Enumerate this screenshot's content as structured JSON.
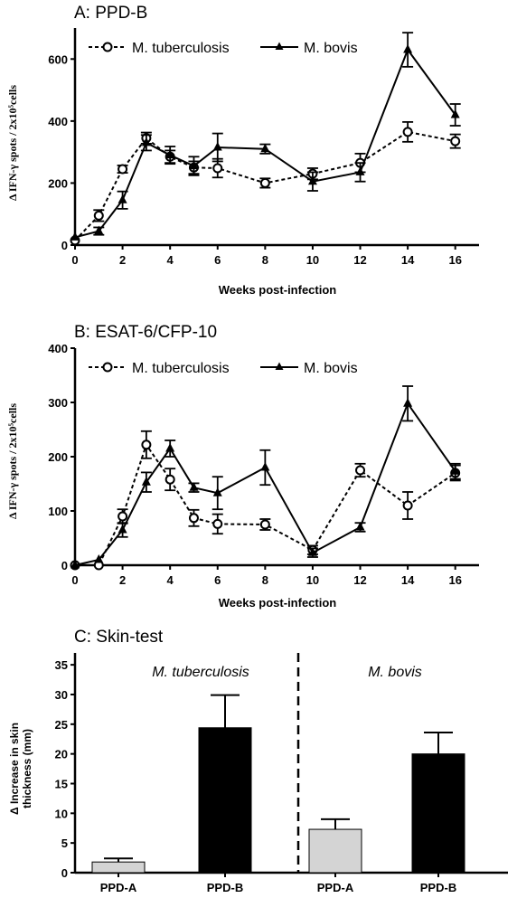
{
  "chart_data": [
    {
      "type": "line",
      "title": "A: PPD-B",
      "xlabel": "Weeks post-infection",
      "ylabel": "Δ IFN-γ spots / 2x10⁵cells",
      "xlim": [
        0,
        17
      ],
      "ylim": [
        0,
        700
      ],
      "xticks": [
        "0",
        "2",
        "4",
        "6",
        "8",
        "10",
        "12",
        "14",
        "16"
      ],
      "yticks": [
        "0",
        "200",
        "400",
        "600"
      ],
      "legend_position": "top-left",
      "series": [
        {
          "name": "M. tuberculosis",
          "style": "dashed-open-circle",
          "x": [
            0,
            1,
            2,
            3,
            4,
            5,
            6,
            8,
            10,
            12,
            14,
            16
          ],
          "y": [
            15,
            95,
            245,
            345,
            285,
            250,
            248,
            200,
            230,
            265,
            365,
            335
          ],
          "err": [
            0,
            18,
            12,
            18,
            20,
            20,
            30,
            15,
            18,
            30,
            32,
            22
          ]
        },
        {
          "name": "M. bovis",
          "style": "solid-triangle",
          "x": [
            0,
            1,
            2,
            3,
            4,
            5,
            6,
            8,
            10,
            12,
            14,
            16
          ],
          "y": [
            25,
            45,
            145,
            330,
            290,
            255,
            315,
            310,
            205,
            235,
            630,
            420
          ],
          "err": [
            0,
            12,
            28,
            25,
            28,
            30,
            45,
            15,
            30,
            30,
            55,
            35
          ]
        }
      ]
    },
    {
      "type": "line",
      "title": "B: ESAT-6/CFP-10",
      "xlabel": "Weeks post-infection",
      "ylabel": "Δ IFN-γ spots / 2x10⁵cells",
      "xlim": [
        0,
        17
      ],
      "ylim": [
        0,
        400
      ],
      "xticks": [
        "0",
        "2",
        "4",
        "6",
        "8",
        "10",
        "12",
        "14",
        "16"
      ],
      "yticks": [
        "0",
        "100",
        "200",
        "300",
        "400"
      ],
      "legend_position": "top-left",
      "series": [
        {
          "name": "M. tuberculosis",
          "style": "dashed-open-circle",
          "x": [
            0,
            1,
            2,
            3,
            4,
            5,
            6,
            8,
            10,
            12,
            14,
            16
          ],
          "y": [
            0,
            0,
            90,
            222,
            158,
            87,
            76,
            75,
            28,
            175,
            110,
            170
          ],
          "err": [
            0,
            0,
            13,
            25,
            20,
            15,
            18,
            10,
            8,
            12,
            25,
            14
          ]
        },
        {
          "name": "M. bovis",
          "style": "solid-triangle",
          "x": [
            0,
            1,
            2,
            3,
            4,
            5,
            6,
            8,
            10,
            12,
            14,
            16
          ],
          "y": [
            0,
            10,
            65,
            153,
            215,
            143,
            133,
            180,
            23,
            70,
            298,
            173
          ],
          "err": [
            0,
            0,
            13,
            18,
            15,
            8,
            30,
            32,
            8,
            8,
            32,
            14
          ]
        }
      ]
    },
    {
      "type": "bar",
      "title": "C: Skin-test",
      "ylabel_lines": [
        "Δ Increase in skin",
        "thickness (mm)"
      ],
      "ylim": [
        0,
        37
      ],
      "yticks": [
        "0",
        "5",
        "10",
        "15",
        "20",
        "25",
        "30",
        "35"
      ],
      "groups": [
        "M. tuberculosis",
        "M. bovis"
      ],
      "categories": [
        "PPD-A",
        "PPD-B",
        "PPD-A",
        "PPD-B"
      ],
      "values": [
        1.8,
        24.4,
        7.3,
        20.0
      ],
      "err": [
        0.6,
        5.5,
        1.7,
        3.6
      ],
      "colors": [
        "#d4d4d4",
        "#000000",
        "#d4d4d4",
        "#000000"
      ]
    }
  ]
}
